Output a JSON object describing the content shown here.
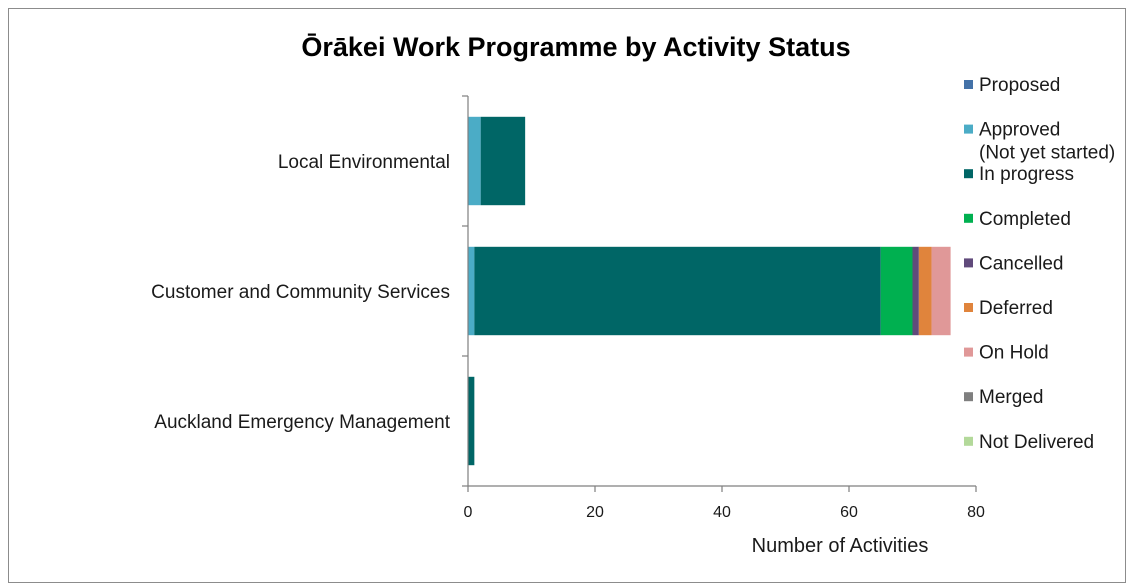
{
  "chart_data": {
    "type": "bar",
    "orientation": "horizontal",
    "stacked": true,
    "title": "Ōrākei Work Programme by Activity Status",
    "xlabel": "Number of Activities",
    "ylabel": "",
    "xlim": [
      0,
      80
    ],
    "xticks": [
      "0",
      "20",
      "40",
      "60",
      "80"
    ],
    "grid": false,
    "legend_position": "right",
    "categories": [
      "Local Environmental",
      "Customer and Community Services",
      "Auckland Emergency Management"
    ],
    "series": [
      {
        "name": "Proposed",
        "color": "#4472a8",
        "values": [
          0,
          0,
          0
        ]
      },
      {
        "name": "Approved\n(Not yet started)",
        "color": "#4bacc6",
        "values": [
          2,
          1,
          0
        ]
      },
      {
        "name": "In progress",
        "color": "#006666",
        "values": [
          7,
          64,
          1
        ]
      },
      {
        "name": "Completed",
        "color": "#00b050",
        "values": [
          0,
          5,
          0
        ]
      },
      {
        "name": "Cancelled",
        "color": "#604a7b",
        "values": [
          0,
          1,
          0
        ]
      },
      {
        "name": "Deferred",
        "color": "#e0843c",
        "values": [
          0,
          2,
          0
        ]
      },
      {
        "name": "On Hold",
        "color": "#e09898",
        "values": [
          0,
          3,
          0
        ]
      },
      {
        "name": "Merged",
        "color": "#7f7f7f",
        "values": [
          0,
          0,
          0
        ]
      },
      {
        "name": "Not Delivered",
        "color": "#b3d99a",
        "values": [
          0,
          0,
          0
        ]
      }
    ]
  }
}
